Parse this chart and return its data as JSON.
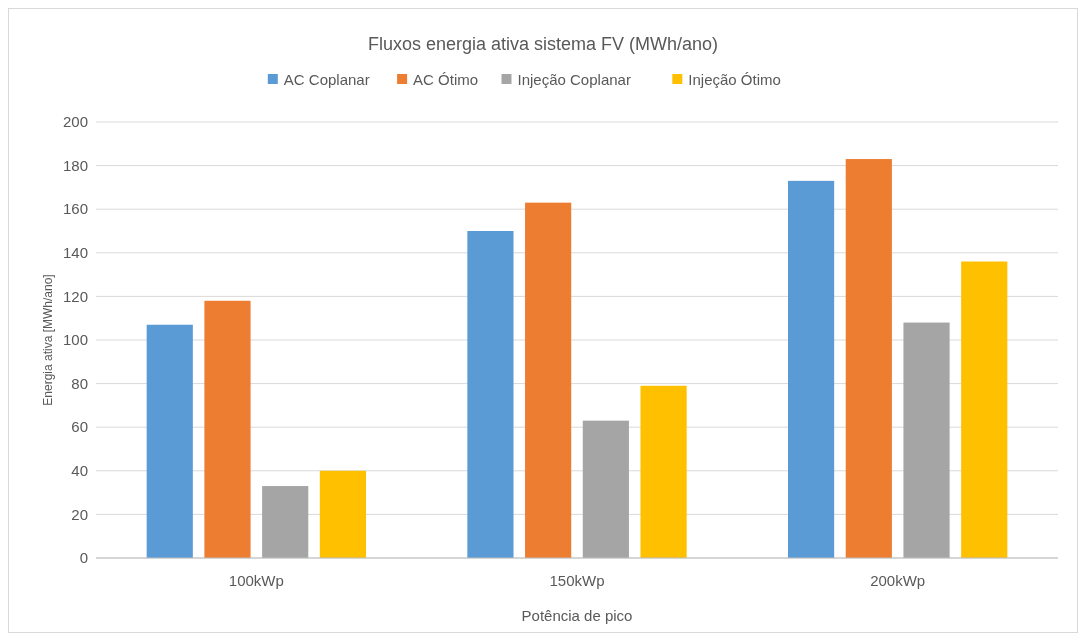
{
  "chart_data": {
    "type": "bar",
    "title": "Fluxos energia ativa sistema FV (MWh/ano)",
    "xlabel": "Potência de pico",
    "ylabel": "Energia ativa [MWh/ano]",
    "categories": [
      "100kWp",
      "150kWp",
      "200kWp"
    ],
    "series": [
      {
        "name": "AC Coplanar",
        "color": "#5b9bd5",
        "values": [
          107,
          150,
          173
        ]
      },
      {
        "name": "AC Ótimo",
        "color": "#ed7d31",
        "values": [
          118,
          163,
          183
        ]
      },
      {
        "name": "Injeção Coplanar",
        "color": "#a5a5a5",
        "values": [
          33,
          63,
          108
        ]
      },
      {
        "name": "Injeção Ótimo",
        "color": "#ffc000",
        "values": [
          40,
          79,
          136
        ]
      }
    ],
    "ylim": [
      0,
      200
    ],
    "yticks": [
      0,
      20,
      40,
      60,
      80,
      100,
      120,
      140,
      160,
      180,
      200
    ],
    "grid": "y",
    "legend": "top"
  }
}
